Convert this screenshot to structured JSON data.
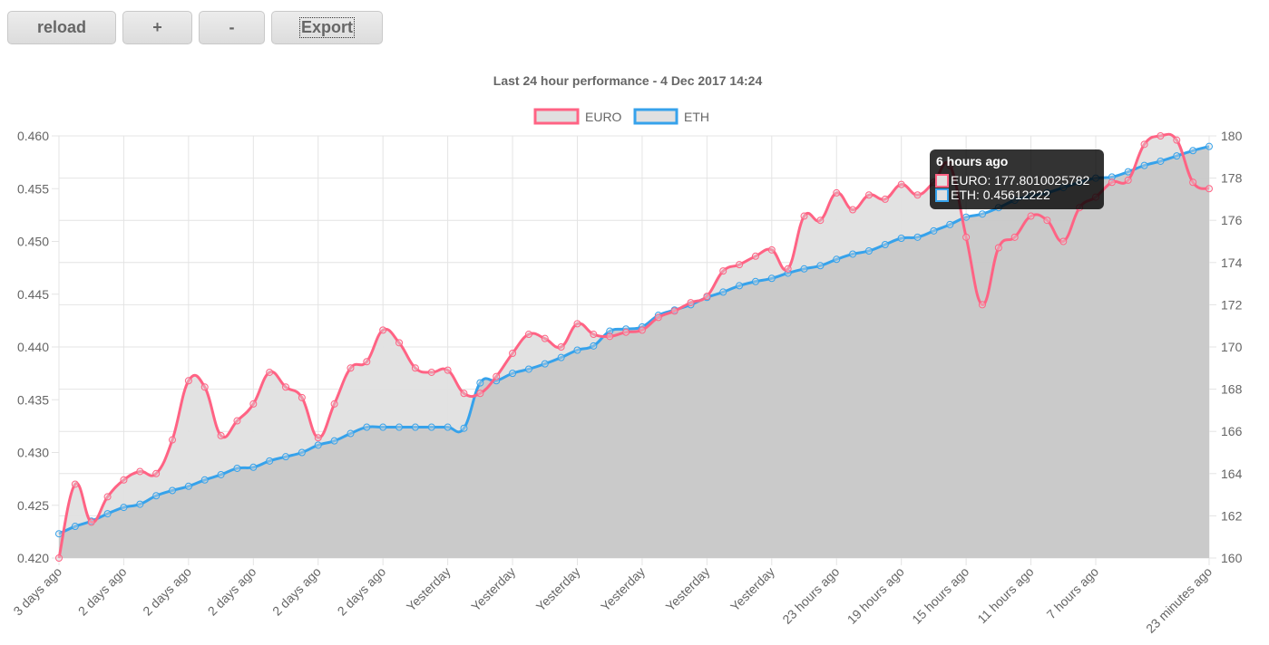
{
  "toolbar": {
    "reload_label": "reload",
    "zoom_in_label": "+",
    "zoom_out_label": "-",
    "export_label": "Export"
  },
  "tooltip": {
    "title": "6 hours ago",
    "index": 65,
    "lines": [
      "EURO: 177.8010025782",
      "ETH: 0.45612222"
    ]
  },
  "colors": {
    "euro": "#ff6384",
    "eth": "#36a2eb",
    "fill_light": "#e0e0e0",
    "fill_dark": "#c8c8c8",
    "grid": "#e4e4e4",
    "text": "#666666",
    "tooltip_bg": "#000000"
  },
  "chart_data": {
    "type": "line",
    "title": "Last 24 hour performance - 4 Dec 2017 14:24",
    "legend": [
      "EURO",
      "ETH"
    ],
    "legend_position": "top",
    "grid": true,
    "x_tick_labels": [
      "3 days ago",
      "2 days ago",
      "2 days ago",
      "2 days ago",
      "2 days ago",
      "2 days ago",
      "Yesterday",
      "Yesterday",
      "Yesterday",
      "Yesterday",
      "Yesterday",
      "Yesterday",
      "23 hours ago",
      "19 hours ago",
      "15 hours ago",
      "11 hours ago",
      "7 hours ago",
      "23 minutes ago"
    ],
    "x_tick_indices": [
      0,
      4,
      8,
      12,
      16,
      20,
      24,
      28,
      32,
      36,
      40,
      44,
      48,
      52,
      56,
      60,
      64,
      71
    ],
    "n_points": 72,
    "axes": {
      "left": {
        "series": "ETH",
        "min": 0.42,
        "max": 0.46,
        "step": 0.005,
        "ticks": [
          "0.420",
          "0.425",
          "0.430",
          "0.435",
          "0.440",
          "0.445",
          "0.450",
          "0.455",
          "0.460"
        ]
      },
      "right": {
        "series": "EURO",
        "min": 160,
        "max": 180,
        "step": 2,
        "ticks": [
          "160",
          "162",
          "164",
          "166",
          "168",
          "170",
          "172",
          "174",
          "176",
          "178",
          "180"
        ]
      }
    },
    "series": [
      {
        "name": "EURO",
        "axis": "right",
        "values": [
          160.0,
          163.5,
          161.7,
          162.9,
          163.7,
          164.1,
          164.0,
          165.6,
          168.4,
          168.1,
          165.8,
          166.5,
          167.3,
          168.8,
          168.1,
          167.6,
          165.7,
          167.3,
          169.0,
          169.3,
          170.8,
          170.2,
          169.0,
          168.8,
          168.9,
          167.8,
          167.8,
          168.6,
          169.7,
          170.6,
          170.4,
          170.0,
          171.1,
          170.6,
          170.5,
          170.7,
          170.8,
          171.4,
          171.7,
          172.1,
          172.4,
          173.6,
          173.9,
          174.3,
          174.6,
          173.7,
          176.2,
          176.0,
          177.3,
          176.5,
          177.2,
          177.0,
          177.7,
          177.2,
          177.8,
          178.6,
          175.2,
          172.0,
          174.7,
          175.2,
          176.2,
          176.0,
          175.0,
          176.6,
          177.1,
          177.8,
          177.9,
          179.6,
          180.0,
          179.8,
          177.8,
          177.5
        ]
      },
      {
        "name": "ETH",
        "axis": "left",
        "values": [
          0.4223,
          0.423,
          0.4235,
          0.4242,
          0.4248,
          0.4251,
          0.4259,
          0.4264,
          0.4268,
          0.4274,
          0.4279,
          0.4285,
          0.4286,
          0.4292,
          0.4296,
          0.43,
          0.4307,
          0.4311,
          0.4318,
          0.4324,
          0.4324,
          0.4324,
          0.4324,
          0.4324,
          0.4324,
          0.4323,
          0.4366,
          0.4368,
          0.4375,
          0.4379,
          0.4384,
          0.439,
          0.4397,
          0.4401,
          0.4415,
          0.4417,
          0.4419,
          0.443,
          0.4435,
          0.444,
          0.4447,
          0.4452,
          0.4458,
          0.4462,
          0.4465,
          0.447,
          0.4474,
          0.4477,
          0.4483,
          0.4488,
          0.4491,
          0.4497,
          0.4503,
          0.4504,
          0.451,
          0.4516,
          0.4523,
          0.4526,
          0.4532,
          0.4539,
          0.4543,
          0.4546,
          0.4551,
          0.4556,
          0.456,
          0.4561,
          0.4566,
          0.4572,
          0.4576,
          0.4581,
          0.4586,
          0.459
        ]
      }
    ]
  }
}
